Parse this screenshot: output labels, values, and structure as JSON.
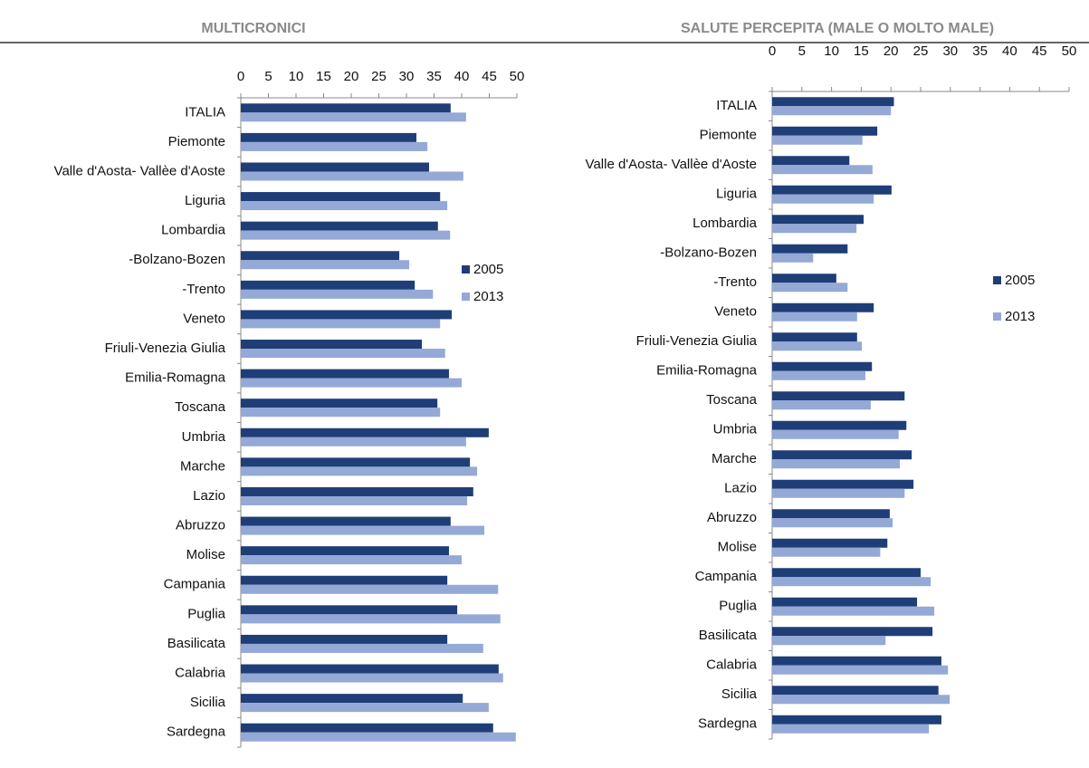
{
  "chart_data": [
    {
      "type": "bar",
      "orientation": "horizontal",
      "title": "MULTICRONICI",
      "categories": [
        "ITALIA",
        "Piemonte",
        "Valle d'Aosta- Vallèe d'Aoste",
        "Liguria",
        "Lombardia",
        "-Bolzano-Bozen",
        "-Trento",
        "Veneto",
        "Friuli-Venezia Giulia",
        "Emilia-Romagna",
        "Toscana",
        "Umbria",
        "Marche",
        "Lazio",
        "Abruzzo",
        "Molise",
        "Campania",
        "Puglia",
        "Basilicata",
        "Calabria",
        "Sicilia",
        "Sardegna"
      ],
      "series": [
        {
          "name": "2005",
          "color": "#1f3e78",
          "values": [
            38.0,
            31.8,
            34.1,
            36.1,
            35.7,
            28.7,
            31.5,
            38.2,
            32.8,
            37.7,
            35.6,
            44.9,
            41.5,
            42.1,
            38.0,
            37.7,
            37.4,
            39.2,
            37.4,
            46.7,
            40.2,
            45.7
          ]
        },
        {
          "name": "2013",
          "color": "#95a9d6",
          "values": [
            40.8,
            33.8,
            40.3,
            37.4,
            37.9,
            30.5,
            34.8,
            36.1,
            37.0,
            40.0,
            36.1,
            40.8,
            42.8,
            41.0,
            44.1,
            40.0,
            46.6,
            47.0,
            43.9,
            47.5,
            44.9,
            49.8
          ]
        }
      ],
      "xlim": [
        0,
        50
      ],
      "xticks": [
        0,
        5,
        10,
        15,
        20,
        25,
        30,
        35,
        40,
        45,
        50
      ],
      "legend": "right"
    },
    {
      "type": "bar",
      "orientation": "horizontal",
      "title": "SALUTE PERCEPITA (MALE O MOLTO MALE)",
      "categories": [
        "ITALIA",
        "Piemonte",
        "Valle d'Aosta- Vallèe d'Aoste",
        "Liguria",
        "Lombardia",
        "-Bolzano-Bozen",
        "-Trento",
        "Veneto",
        "Friuli-Venezia Giulia",
        "Emilia-Romagna",
        "Toscana",
        "Umbria",
        "Marche",
        "Lazio",
        "Abruzzo",
        "Molise",
        "Campania",
        "Puglia",
        "Basilicata",
        "Calabria",
        "Sicilia",
        "Sardegna"
      ],
      "series": [
        {
          "name": "2005",
          "color": "#1f3e78",
          "values": [
            20.5,
            17.7,
            13.0,
            20.1,
            15.4,
            12.7,
            10.8,
            17.1,
            14.3,
            16.8,
            22.3,
            22.6,
            23.5,
            23.8,
            19.8,
            19.4,
            25.0,
            24.4,
            27.0,
            28.5,
            28.0,
            28.5
          ]
        },
        {
          "name": "2013",
          "color": "#95a9d6",
          "values": [
            20.0,
            15.2,
            16.9,
            17.1,
            14.2,
            6.9,
            12.7,
            14.3,
            15.1,
            15.7,
            16.6,
            21.3,
            21.5,
            22.3,
            20.3,
            18.2,
            26.7,
            27.3,
            19.1,
            29.6,
            29.9,
            26.4
          ]
        }
      ],
      "xlim": [
        0,
        50
      ],
      "xticks": [
        0,
        5,
        10,
        15,
        20,
        25,
        30,
        35,
        40,
        45,
        50
      ],
      "legend": "right"
    }
  ]
}
